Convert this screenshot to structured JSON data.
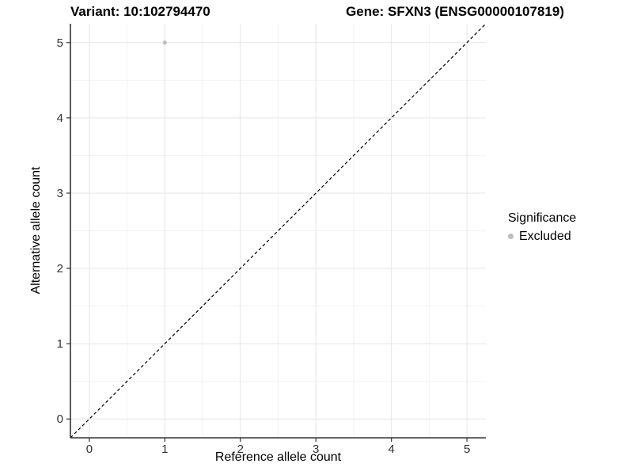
{
  "chart_data": {
    "type": "scatter",
    "title_left": "Variant: 10:102794470",
    "title_right": "Gene: SFXN3 (ENSG00000107819)",
    "xlabel": "Reference allele count",
    "ylabel": "Alternative allele count",
    "xlim": [
      -0.25,
      5.25
    ],
    "ylim": [
      -0.25,
      5.25
    ],
    "xticks": [
      0,
      1,
      2,
      3,
      4,
      5
    ],
    "yticks": [
      0,
      1,
      2,
      3,
      4,
      5
    ],
    "minor_xticks": [
      0.5,
      1.5,
      2.5,
      3.5,
      4.5
    ],
    "minor_yticks": [
      0.5,
      1.5,
      2.5,
      3.5,
      4.5
    ],
    "grid": "major+minor",
    "series": [
      {
        "name": "Excluded",
        "marker": "circle",
        "color": "#bdbdbd",
        "points": [
          {
            "x": 1,
            "y": 5
          }
        ]
      }
    ],
    "reference_line": {
      "kind": "identity",
      "from": [
        -0.25,
        -0.25
      ],
      "to": [
        5.25,
        5.25
      ],
      "style": "dashed",
      "color": "#000000"
    },
    "legend": {
      "title": "Significance",
      "position": "right",
      "items": [
        {
          "label": "Excluded",
          "color": "#bdbdbd",
          "marker": "circle"
        }
      ]
    },
    "colors": {
      "background": "#ffffff",
      "grid_major": "#e5e5e5",
      "grid_minor": "#f2f2f2",
      "axis_line": "#333333",
      "tick_mark": "#333333",
      "tick_text": "#333333",
      "title_text": "#000000",
      "point": "#bdbdbd",
      "reference_line": "#000000"
    }
  }
}
